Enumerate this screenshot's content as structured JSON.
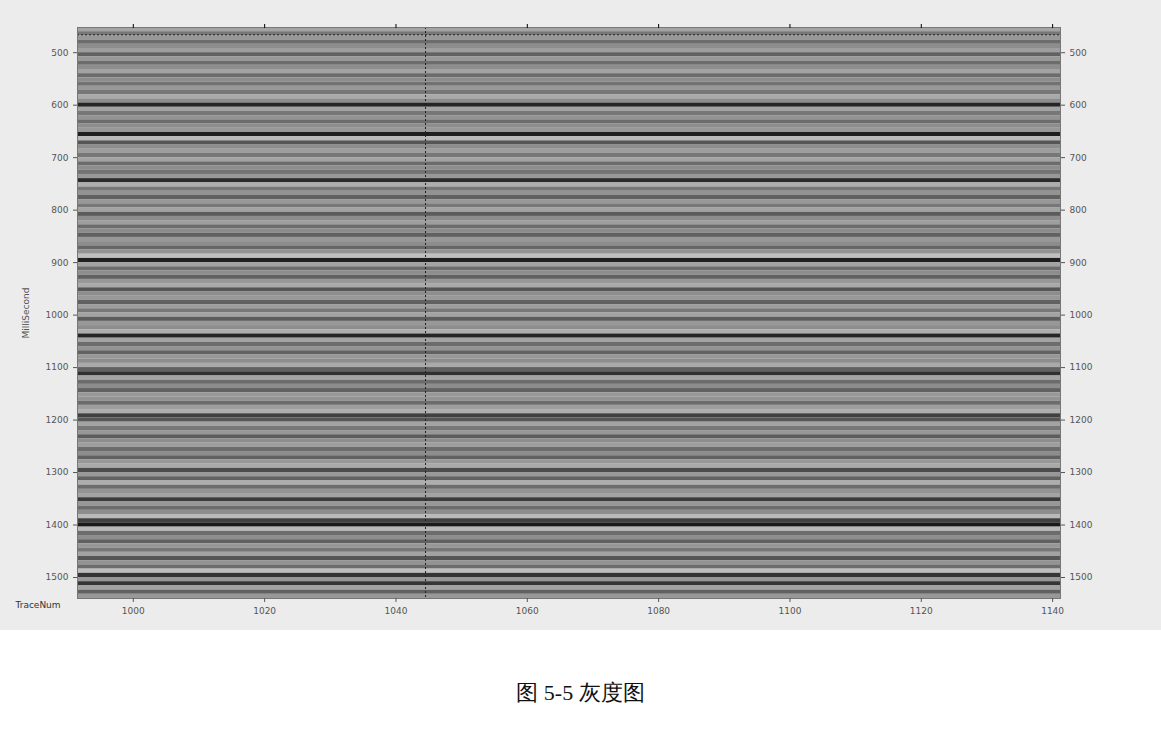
{
  "chart_data": {
    "type": "heatmap",
    "caption": "图 5-5 灰度图",
    "x_label": "TraceNum",
    "y_label": "MilliSecond",
    "xlim": [
      991.5,
      1141.2
    ],
    "xticks": [
      1000,
      1020,
      1040,
      1060,
      1080,
      1100,
      1120,
      1140
    ],
    "ylim": [
      452,
      1540
    ],
    "yticks": [
      500,
      600,
      700,
      800,
      900,
      1000,
      1100,
      1200,
      1300,
      1400,
      1500
    ],
    "amplitude_range": [
      -1,
      1
    ],
    "cursor_trace": 1044.5,
    "cursor_time": 466,
    "time_edges": [
      452,
      460,
      468,
      476,
      484,
      492,
      500,
      508,
      516,
      524,
      532,
      540,
      548,
      556,
      564,
      572,
      580,
      588,
      596,
      604,
      612,
      620,
      628,
      636,
      644,
      652,
      660,
      668,
      676,
      684,
      692,
      700,
      708,
      716,
      724,
      732,
      740,
      748,
      756,
      764,
      772,
      780,
      788,
      796,
      804,
      812,
      820,
      828,
      836,
      844,
      852,
      860,
      868,
      876,
      884,
      892,
      900,
      908,
      916,
      924,
      932,
      940,
      948,
      956,
      964,
      972,
      980,
      988,
      996,
      1004,
      1012,
      1020,
      1028,
      1036,
      1044,
      1052,
      1060,
      1068,
      1076,
      1084,
      1092,
      1100,
      1108,
      1116,
      1124,
      1132,
      1140,
      1148,
      1156,
      1164,
      1172,
      1180,
      1188,
      1196,
      1204,
      1212,
      1220,
      1228,
      1236,
      1244,
      1252,
      1260,
      1268,
      1276,
      1284,
      1292,
      1300,
      1308,
      1316,
      1324,
      1332,
      1340,
      1348,
      1356,
      1364,
      1372,
      1380,
      1388,
      1396,
      1404,
      1412,
      1420,
      1428,
      1436,
      1444,
      1452,
      1460,
      1468,
      1476,
      1484,
      1492,
      1500,
      1508,
      1516,
      1524,
      1532,
      1540
    ],
    "amplitudes": [
      0.3,
      -0.1,
      0.2,
      -0.2,
      0.1,
      0.25,
      -0.3,
      0.2,
      -0.2,
      0.1,
      0.3,
      -0.2,
      0.1,
      -0.15,
      0.2,
      -0.1,
      0.35,
      0.1,
      -0.85,
      0.3,
      -0.1,
      0.15,
      -0.2,
      0.1,
      0.2,
      -0.9,
      0.5,
      -0.4,
      0.1,
      0.25,
      -0.1,
      0.3,
      -0.2,
      0.1,
      -0.15,
      0.2,
      -0.8,
      0.4,
      -0.1,
      0.15,
      -0.3,
      0.2,
      -0.1,
      0.3,
      -0.35,
      0.1,
      0.25,
      -0.2,
      0.1,
      -0.3,
      0.2,
      0.1,
      -0.25,
      0.15,
      0.55,
      -0.9,
      0.3,
      -0.2,
      0.1,
      -0.3,
      0.2,
      0.35,
      -0.4,
      0.1,
      0.2,
      -0.3,
      0.25,
      -0.1,
      0.3,
      -0.35,
      0.2,
      0.1,
      0.4,
      -0.85,
      0.3,
      -0.2,
      0.15,
      -0.3,
      0.2,
      0.1,
      0.35,
      -0.3,
      -0.75,
      0.3,
      -0.2,
      0.1,
      -0.3,
      0.2,
      0.15,
      -0.2,
      0.25,
      0.4,
      -0.6,
      -0.4,
      0.3,
      -0.1,
      0.2,
      -0.35,
      0.1,
      0.25,
      -0.2,
      0.1,
      -0.3,
      0.2,
      0.35,
      -0.5,
      0.2,
      -0.3,
      0.4,
      -0.2,
      0.15,
      0.3,
      -0.65,
      0.2,
      -0.2,
      0.1,
      0.5,
      -0.6,
      -0.95,
      0.5,
      -0.2,
      0.1,
      -0.3,
      0.2,
      -0.1,
      0.3,
      -0.4,
      0.15,
      -0.2,
      0.55,
      -0.7,
      0.2,
      -0.7,
      0.3,
      -0.3,
      0.2
    ]
  }
}
